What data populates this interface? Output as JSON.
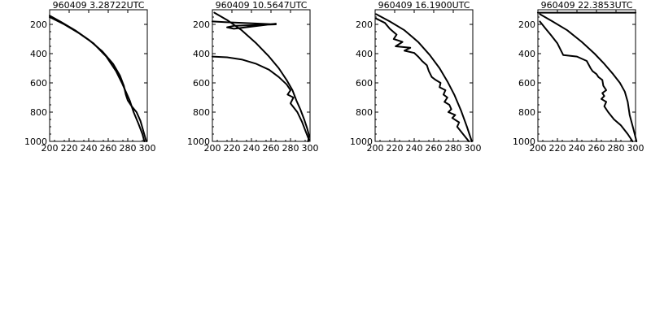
{
  "chart_data": [
    {
      "type": "line",
      "title": "960409   3.28722UTC",
      "xlim": [
        200,
        300
      ],
      "ylim": [
        1000,
        100
      ],
      "xticks": [
        200,
        220,
        240,
        260,
        280,
        300
      ],
      "yticks": [
        200,
        400,
        600,
        800,
        1000
      ],
      "xtick_labels": [
        "200",
        "220",
        "240",
        "260",
        "280",
        "300"
      ],
      "ytick_labels": [
        "200",
        "400",
        "600",
        "800",
        "1000"
      ],
      "series": [
        {
          "x": [
            200,
            215,
            230,
            245,
            258,
            268,
            274,
            278,
            282,
            286,
            291,
            295,
            297
          ],
          "y": [
            150,
            200,
            260,
            330,
            420,
            520,
            600,
            660,
            720,
            800,
            880,
            950,
            1000
          ]
        },
        {
          "x": [
            200,
            212,
            226,
            240,
            254,
            265,
            272,
            276,
            278,
            280,
            284,
            289,
            293,
            296,
            299
          ],
          "y": [
            140,
            185,
            240,
            305,
            385,
            470,
            550,
            620,
            680,
            720,
            760,
            800,
            860,
            930,
            1000
          ]
        }
      ]
    },
    {
      "type": "line",
      "title": "960409   10.5647UTC",
      "xlim": [
        200,
        300
      ],
      "ylim": [
        1000,
        100
      ],
      "xticks": [
        200,
        220,
        240,
        260,
        280,
        300
      ],
      "yticks": [
        200,
        400,
        600,
        800,
        1000
      ],
      "xtick_labels": [
        "200",
        "220",
        "240",
        "260",
        "280",
        "300"
      ],
      "ytick_labels": [
        "200",
        "400",
        "600",
        "800",
        "1000"
      ],
      "series": [
        {
          "x": [
            202,
            215,
            230,
            245,
            258,
            268,
            276,
            282,
            286,
            290,
            294,
            297,
            299,
            298
          ],
          "y": [
            120,
            170,
            240,
            330,
            420,
            500,
            580,
            650,
            720,
            780,
            850,
            910,
            960,
            1000
          ]
        },
        {
          "x": [
            200,
            215,
            230,
            245,
            258,
            268,
            276,
            280,
            277,
            283,
            280,
            287,
            292,
            296,
            299
          ],
          "y": [
            420,
            425,
            440,
            470,
            510,
            560,
            610,
            650,
            680,
            700,
            740,
            800,
            870,
            940,
            990
          ]
        },
        {
          "x": [
            200,
            213,
            265,
            222,
            215,
            222,
            265
          ],
          "y": [
            180,
            185,
            200,
            210,
            220,
            230,
            195
          ]
        }
      ]
    },
    {
      "type": "line",
      "title": "960409   16.1900UTC",
      "xlim": [
        200,
        300
      ],
      "ylim": [
        1000,
        100
      ],
      "xticks": [
        200,
        220,
        240,
        260,
        280,
        300
      ],
      "yticks": [
        200,
        400,
        600,
        800,
        1000
      ],
      "xtick_labels": [
        "200",
        "220",
        "240",
        "260",
        "280",
        "300"
      ],
      "ytick_labels": [
        "200",
        "400",
        "600",
        "800",
        "1000"
      ],
      "series": [
        {
          "x": [
            201,
            215,
            230,
            244,
            256,
            266,
            274,
            281,
            288,
            294,
            299
          ],
          "y": [
            130,
            180,
            240,
            320,
            410,
            500,
            590,
            680,
            790,
            900,
            1000
          ]
        },
        {
          "x": [
            201,
            210,
            215,
            222,
            219,
            228,
            221,
            236,
            230,
            240,
            244,
            248,
            253,
            255,
            258,
            262,
            267,
            266,
            272,
            270,
            274,
            271,
            276,
            278,
            275,
            282,
            279,
            286,
            284,
            290,
            296
          ],
          "y": [
            160,
            190,
            230,
            270,
            300,
            320,
            350,
            360,
            380,
            395,
            420,
            450,
            480,
            520,
            560,
            580,
            600,
            630,
            650,
            680,
            700,
            730,
            750,
            780,
            800,
            820,
            840,
            870,
            900,
            950,
            1000
          ]
        }
      ]
    },
    {
      "type": "line",
      "title": "960409   22.3853UTC",
      "xlim": [
        200,
        300
      ],
      "ylim": [
        1000,
        100
      ],
      "xticks": [
        200,
        220,
        240,
        260,
        280,
        300
      ],
      "yticks": [
        200,
        400,
        600,
        800,
        1000
      ],
      "xtick_labels": [
        "200",
        "220",
        "240",
        "260",
        "280",
        "300"
      ],
      "ytick_labels": [
        "200",
        "400",
        "600",
        "800",
        "1000"
      ],
      "series": [
        {
          "x": [
            202,
            215,
            230,
            245,
            258,
            268,
            277,
            284,
            289,
            292,
            294,
            298,
            301
          ],
          "y": [
            130,
            180,
            240,
            320,
            400,
            470,
            540,
            600,
            660,
            730,
            820,
            920,
            1000
          ]
        },
        {
          "x": [
            200,
            300
          ],
          "y": [
            120,
            120
          ]
        },
        {
          "x": [
            202,
            208,
            213,
            220,
            226,
            240,
            250,
            254,
            256,
            260,
            262,
            266,
            267,
            270,
            266,
            268,
            265,
            270,
            268,
            272,
            278,
            285,
            292,
            297
          ],
          "y": [
            180,
            230,
            270,
            330,
            410,
            420,
            450,
            500,
            520,
            540,
            560,
            580,
            620,
            650,
            670,
            690,
            710,
            730,
            760,
            800,
            850,
            890,
            950,
            1000
          ]
        }
      ]
    }
  ]
}
